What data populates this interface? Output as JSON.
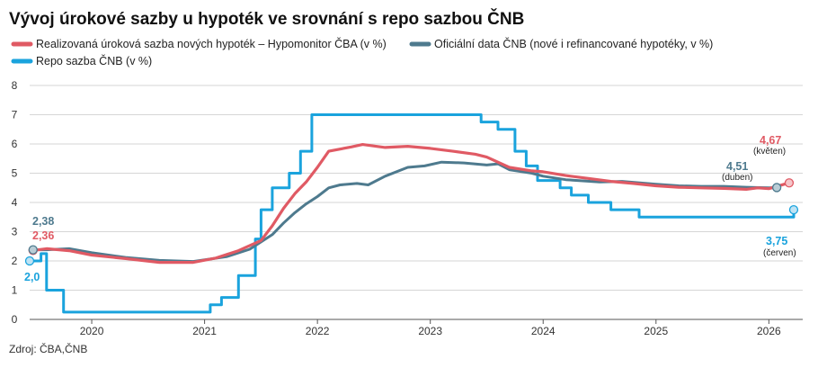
{
  "chart_data": {
    "type": "line",
    "title": "Vývoj úrokové sazby u hypoték ve srovnání s repo sazbou ČNB",
    "source": "Zdroj: ČBA,ČNB",
    "ylim": [
      0,
      8
    ],
    "yticks": [
      "0",
      "1",
      "2",
      "3",
      "4",
      "5",
      "6",
      "7",
      "8"
    ],
    "xlim": [
      2019.45,
      2026.3
    ],
    "xticks": [
      {
        "label": "2020",
        "x": 2020.0
      },
      {
        "label": "2021",
        "x": 2021.0
      },
      {
        "label": "2022",
        "x": 2022.0
      },
      {
        "label": "2023",
        "x": 2023.0
      },
      {
        "label": "2024",
        "x": 2024.0
      },
      {
        "label": "2025",
        "x": 2025.0
      },
      {
        "label": "2026",
        "x": 2026.0
      }
    ],
    "grid": true,
    "legend_position": "top",
    "series": [
      {
        "name": "Realizovaná úroková sazba nových hypoték – Hypomonitor ČBA (v %)",
        "color": "#e05a64",
        "step": false,
        "points": [
          [
            2019.48,
            2.36
          ],
          [
            2019.6,
            2.42
          ],
          [
            2019.8,
            2.35
          ],
          [
            2020.0,
            2.2
          ],
          [
            2020.3,
            2.08
          ],
          [
            2020.6,
            1.95
          ],
          [
            2020.9,
            1.95
          ],
          [
            2021.1,
            2.1
          ],
          [
            2021.3,
            2.35
          ],
          [
            2021.5,
            2.7
          ],
          [
            2021.6,
            3.2
          ],
          [
            2021.7,
            3.8
          ],
          [
            2021.8,
            4.3
          ],
          [
            2021.9,
            4.7
          ],
          [
            2022.0,
            5.2
          ],
          [
            2022.1,
            5.75
          ],
          [
            2022.3,
            5.9
          ],
          [
            2022.4,
            5.98
          ],
          [
            2022.6,
            5.88
          ],
          [
            2022.8,
            5.92
          ],
          [
            2023.0,
            5.85
          ],
          [
            2023.2,
            5.75
          ],
          [
            2023.4,
            5.65
          ],
          [
            2023.5,
            5.55
          ],
          [
            2023.7,
            5.2
          ],
          [
            2023.9,
            5.08
          ],
          [
            2024.0,
            5.05
          ],
          [
            2024.2,
            4.92
          ],
          [
            2024.4,
            4.82
          ],
          [
            2024.6,
            4.72
          ],
          [
            2024.8,
            4.65
          ],
          [
            2025.0,
            4.57
          ],
          [
            2025.2,
            4.52
          ],
          [
            2025.4,
            4.5
          ],
          [
            2025.6,
            4.48
          ],
          [
            2025.8,
            4.45
          ],
          [
            2025.9,
            4.5
          ],
          [
            2026.0,
            4.47
          ],
          [
            2026.18,
            4.67
          ]
        ]
      },
      {
        "name": "Oficiální data ČNB (nové i refinancované hypotéky, v %)",
        "color": "#4e7a8e",
        "step": false,
        "points": [
          [
            2019.48,
            2.38
          ],
          [
            2019.6,
            2.38
          ],
          [
            2019.8,
            2.42
          ],
          [
            2020.0,
            2.28
          ],
          [
            2020.3,
            2.12
          ],
          [
            2020.6,
            2.02
          ],
          [
            2020.9,
            1.98
          ],
          [
            2021.2,
            2.15
          ],
          [
            2021.4,
            2.4
          ],
          [
            2021.6,
            2.9
          ],
          [
            2021.7,
            3.3
          ],
          [
            2021.8,
            3.65
          ],
          [
            2021.9,
            3.95
          ],
          [
            2022.0,
            4.2
          ],
          [
            2022.1,
            4.5
          ],
          [
            2022.2,
            4.6
          ],
          [
            2022.35,
            4.65
          ],
          [
            2022.45,
            4.6
          ],
          [
            2022.6,
            4.9
          ],
          [
            2022.8,
            5.2
          ],
          [
            2022.95,
            5.25
          ],
          [
            2023.1,
            5.38
          ],
          [
            2023.3,
            5.35
          ],
          [
            2023.5,
            5.28
          ],
          [
            2023.6,
            5.32
          ],
          [
            2023.7,
            5.12
          ],
          [
            2023.9,
            5.0
          ],
          [
            2024.0,
            4.9
          ],
          [
            2024.2,
            4.78
          ],
          [
            2024.5,
            4.7
          ],
          [
            2024.7,
            4.72
          ],
          [
            2025.0,
            4.62
          ],
          [
            2025.2,
            4.57
          ],
          [
            2025.4,
            4.55
          ],
          [
            2025.6,
            4.55
          ],
          [
            2025.8,
            4.52
          ],
          [
            2026.0,
            4.5
          ],
          [
            2026.07,
            4.51
          ]
        ]
      },
      {
        "name": "Repo sazba ČNB (v %)",
        "color": "#1aa3dd",
        "step": true,
        "points": [
          [
            2019.45,
            2.0
          ],
          [
            2019.55,
            2.25
          ],
          [
            2019.6,
            1.0
          ],
          [
            2019.75,
            0.25
          ],
          [
            2021.05,
            0.5
          ],
          [
            2021.15,
            0.75
          ],
          [
            2021.3,
            1.5
          ],
          [
            2021.45,
            2.75
          ],
          [
            2021.5,
            3.75
          ],
          [
            2021.6,
            4.5
          ],
          [
            2021.75,
            5.0
          ],
          [
            2021.85,
            5.75
          ],
          [
            2021.95,
            7.0
          ],
          [
            2023.45,
            6.75
          ],
          [
            2023.6,
            6.5
          ],
          [
            2023.75,
            5.75
          ],
          [
            2023.85,
            5.25
          ],
          [
            2023.95,
            4.75
          ],
          [
            2024.05,
            4.75
          ],
          [
            2024.15,
            4.5
          ],
          [
            2024.25,
            4.25
          ],
          [
            2024.4,
            4.0
          ],
          [
            2024.6,
            3.75
          ],
          [
            2024.85,
            3.5
          ],
          [
            2026.22,
            3.75
          ]
        ]
      }
    ],
    "annotations": [
      {
        "value": "2,38",
        "color": "#4e7a8e",
        "sub": ""
      },
      {
        "value": "2,36",
        "color": "#e05a64",
        "sub": ""
      },
      {
        "value": "2,0",
        "color": "#1aa3dd",
        "sub": ""
      },
      {
        "value": "4,51",
        "color": "#4e7a8e",
        "sub": "(duben)"
      },
      {
        "value": "4,67",
        "color": "#e05a64",
        "sub": "(květen)"
      },
      {
        "value": "3,75",
        "color": "#1aa3dd",
        "sub": "(červen)"
      }
    ]
  }
}
